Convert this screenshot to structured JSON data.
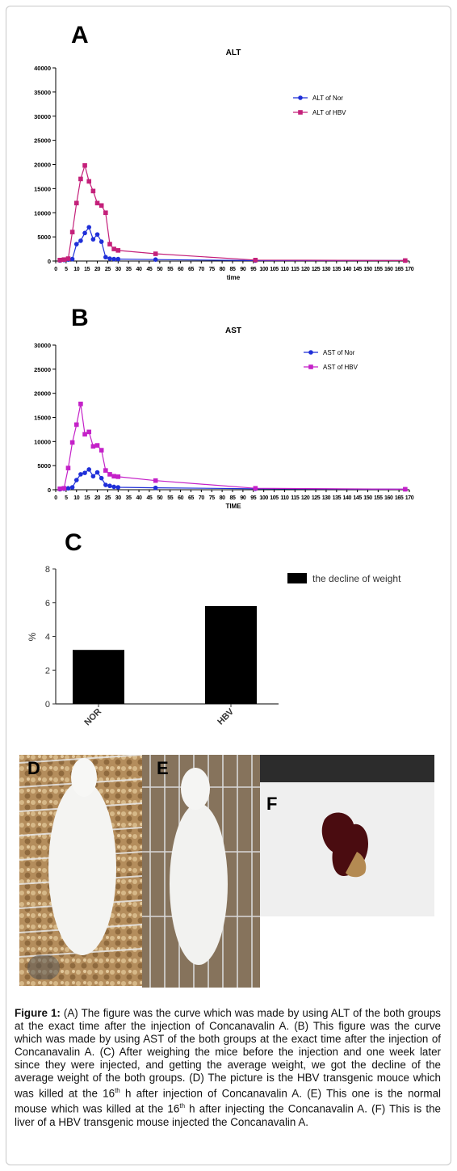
{
  "chart_data": [
    {
      "panel": "A",
      "type": "line",
      "title": "ALT",
      "xlabel": "time",
      "ylabel": "",
      "ylim": [
        0,
        40000
      ],
      "xlim": [
        0,
        170
      ],
      "yticks": [
        "0",
        "5000",
        "10000",
        "15000",
        "20000",
        "25000",
        "30000",
        "35000",
        "40000"
      ],
      "xticks": [
        "0",
        "5",
        "10",
        "15",
        "20",
        "25",
        "30",
        "35",
        "40",
        "45",
        "50",
        "55",
        "60",
        "65",
        "70",
        "75",
        "80",
        "85",
        "90",
        "95",
        "100",
        "105",
        "110",
        "115",
        "120",
        "125",
        "130",
        "135",
        "140",
        "145",
        "150",
        "155",
        "160",
        "165",
        "170"
      ],
      "xtick_labels_printed": "0 5 10 15 20 25 30 35 40 45 50 55 60 65 70 75 80 85 90 95 100 105 110 115 120 125 130 135 140 145 150 155 160 165 170",
      "legend_position": "top-right",
      "series": [
        {
          "name": "ALT of Nor",
          "color": "#1f2fd8",
          "marker": "circle",
          "x": [
            2,
            4,
            6,
            8,
            10,
            12,
            14,
            16,
            18,
            20,
            22,
            24,
            26,
            28,
            30,
            48,
            96,
            168
          ],
          "y": [
            100,
            200,
            300,
            400,
            3500,
            4200,
            5800,
            7000,
            4500,
            5500,
            4000,
            800,
            500,
            400,
            400,
            300,
            100,
            100
          ]
        },
        {
          "name": "ALT of HBV",
          "color": "#c4207a",
          "marker": "square",
          "x": [
            2,
            4,
            6,
            8,
            10,
            12,
            14,
            16,
            18,
            20,
            22,
            24,
            26,
            28,
            30,
            48,
            96,
            168
          ],
          "y": [
            200,
            300,
            500,
            6000,
            12000,
            17000,
            19800,
            16500,
            14500,
            12000,
            11500,
            10000,
            3500,
            2500,
            2200,
            1500,
            200,
            100
          ]
        }
      ]
    },
    {
      "panel": "B",
      "type": "line",
      "title": "AST",
      "xlabel": "TIME",
      "ylabel": "",
      "ylim": [
        0,
        30000
      ],
      "xlim": [
        0,
        170
      ],
      "yticks": [
        "0",
        "5000",
        "10000",
        "15000",
        "20000",
        "25000",
        "30000"
      ],
      "xtick_labels_printed": "0 5 10 15 20 25 30 35 40 45 50 55 60 65 70 75 80 85 90 95 100 105 110 115 120 125 130 135 140 145 150 155 160 165 170",
      "legend_position": "top-right",
      "series": [
        {
          "name": "AST of Nor",
          "color": "#1f2fd8",
          "marker": "circle",
          "x": [
            2,
            4,
            6,
            8,
            10,
            12,
            14,
            16,
            18,
            20,
            22,
            24,
            26,
            28,
            30,
            48,
            96,
            168
          ],
          "y": [
            100,
            200,
            300,
            500,
            2000,
            3200,
            3500,
            4200,
            2800,
            3600,
            2400,
            1000,
            800,
            600,
            500,
            400,
            200,
            100
          ]
        },
        {
          "name": "AST of HBV",
          "color": "#c421c8",
          "marker": "square",
          "x": [
            2,
            4,
            6,
            8,
            10,
            12,
            14,
            16,
            18,
            20,
            22,
            24,
            26,
            28,
            30,
            48,
            96,
            168
          ],
          "y": [
            200,
            300,
            4500,
            9800,
            13500,
            17800,
            11500,
            12000,
            9000,
            9200,
            8200,
            4000,
            3200,
            2800,
            2700,
            1900,
            300,
            100
          ]
        }
      ]
    },
    {
      "panel": "C",
      "type": "bar",
      "title": "",
      "xlabel": "",
      "ylabel": "%",
      "ylim": [
        0,
        8
      ],
      "yticks": [
        "0",
        "2",
        "4",
        "6",
        "8"
      ],
      "categories": [
        "NOR",
        "HBV"
      ],
      "legend_position": "top-right",
      "series": [
        {
          "name": "the decline of weight",
          "color": "#000000",
          "values": [
            3.2,
            5.8
          ]
        }
      ]
    }
  ],
  "panel_labels": {
    "a": "A",
    "b": "B",
    "c": "C",
    "d": "D",
    "e": "E",
    "f": "F"
  },
  "caption": {
    "lead": "Figure 1:",
    "part1": " (A) The figure was the curve which was made by using ALT of the both groups at the exact time after the injection of Concanavalin A. (B) This figure was the curve which was made by using AST of the both groups at the exact time after the injection of Concanavalin A. (C) After weighing the mice before the injection and one week later since they were injected, and getting the average weight, we got the decline of the average weight of the both groups. (D) The picture is the HBV transgenic mouce which was killed at the 16",
    "sup1": "th",
    "part2": " h after injection of Concanavalin A. (E) This one is the normal mouse which was killed at the 16",
    "sup2": "th",
    "part3": " h after injecting the Concanavalin A. (F) This is the liver of a HBV transgenic mouse injected the Concanavalin A."
  }
}
